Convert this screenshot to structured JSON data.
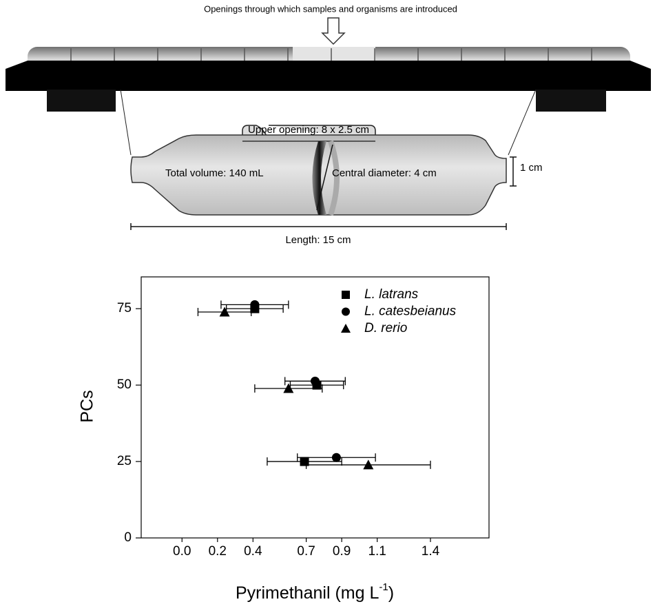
{
  "diagram": {
    "caption": "Openings through which samples and organisms are introduced",
    "upper_opening": "Upper opening: 8 x 2.5 cm",
    "total_volume": "Total volume: 140 mL",
    "central_diameter": "Central diameter: 4 cm",
    "neck": "1 cm",
    "length": "Length: 15 cm"
  },
  "chart_data": {
    "type": "scatter",
    "xlabel": [
      "Pyrimethanil (mg L",
      "-1",
      ")"
    ],
    "ylabel": "PCs",
    "xlim": [
      -0.23,
      1.73
    ],
    "xticks": [
      0.0,
      0.2,
      0.4,
      0.7,
      0.9,
      1.1,
      1.4
    ],
    "ylim": [
      0,
      85.4
    ],
    "yticks": [
      0,
      25,
      50,
      75
    ],
    "legend": "upper right",
    "series": [
      {
        "name": "L. latrans",
        "color": "#000000",
        "marker": "square",
        "x": [
          0.69,
          0.76,
          0.41
        ],
        "values": [
          25,
          50,
          75
        ],
        "xerr": [
          0.21,
          0.15,
          0.16
        ]
      },
      {
        "name": "L. catesbeianus",
        "color": "#000000",
        "marker": "circle",
        "x": [
          0.87,
          0.75,
          0.41
        ],
        "values": [
          26.3,
          51.3,
          76.3
        ],
        "xerr": [
          0.22,
          0.17,
          0.19
        ]
      },
      {
        "name": "D. rerio",
        "color": "#000000",
        "marker": "triangle",
        "x": [
          1.05,
          0.6,
          0.24
        ],
        "values": [
          23.9,
          48.9,
          73.9
        ],
        "xerr": [
          0.35,
          0.19,
          0.15
        ]
      }
    ]
  }
}
